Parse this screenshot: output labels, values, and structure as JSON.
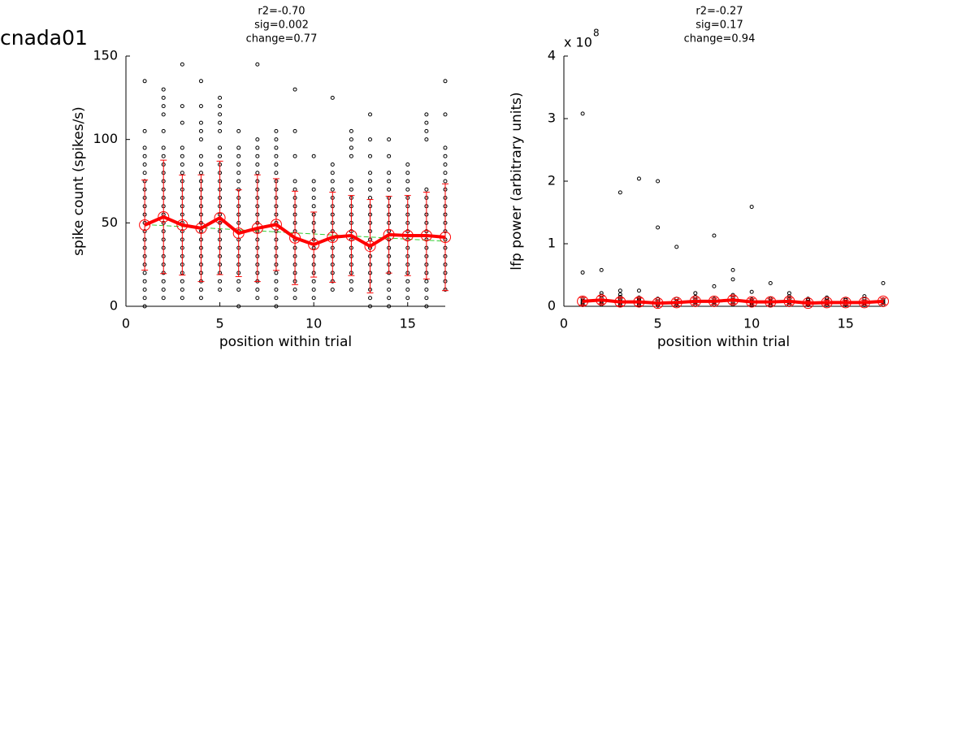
{
  "figure_title": "cnada01",
  "chart_data": [
    {
      "type": "scatter",
      "title_lines": [
        "r2=-0.70",
        "sig=0.002",
        "change=0.77"
      ],
      "xlabel": "position within trial",
      "ylabel": "spike count (spikes/s)",
      "xlim": [
        0,
        17
      ],
      "ylim": [
        0,
        150
      ],
      "xticks": [
        0,
        5,
        10,
        15
      ],
      "yticks": [
        0,
        50,
        100,
        150
      ],
      "points": {
        "color": "#000000",
        "columns": [
          {
            "x": 1,
            "values": [
              0,
              5,
              10,
              15,
              20,
              25,
              30,
              35,
              40,
              45,
              50,
              55,
              60,
              65,
              70,
              75,
              80,
              85,
              90,
              95,
              105,
              135
            ]
          },
          {
            "x": 2,
            "values": [
              5,
              10,
              15,
              20,
              25,
              30,
              35,
              40,
              45,
              50,
              55,
              60,
              65,
              70,
              75,
              80,
              85,
              90,
              95,
              105,
              115,
              120,
              125,
              130
            ]
          },
          {
            "x": 3,
            "values": [
              5,
              10,
              15,
              20,
              25,
              30,
              35,
              40,
              45,
              50,
              55,
              60,
              65,
              70,
              75,
              80,
              85,
              90,
              95,
              110,
              120,
              145
            ]
          },
          {
            "x": 4,
            "values": [
              5,
              10,
              15,
              20,
              25,
              30,
              35,
              40,
              45,
              50,
              55,
              60,
              65,
              70,
              75,
              80,
              85,
              90,
              100,
              105,
              110,
              120,
              135
            ]
          },
          {
            "x": 5,
            "values": [
              10,
              15,
              20,
              25,
              30,
              35,
              40,
              45,
              50,
              55,
              60,
              65,
              70,
              75,
              80,
              85,
              90,
              95,
              105,
              110,
              115,
              120,
              125
            ]
          },
          {
            "x": 6,
            "values": [
              0,
              10,
              15,
              20,
              25,
              30,
              35,
              40,
              45,
              50,
              55,
              60,
              65,
              70,
              75,
              80,
              85,
              90,
              95,
              105
            ]
          },
          {
            "x": 7,
            "values": [
              5,
              10,
              15,
              20,
              25,
              30,
              35,
              40,
              45,
              50,
              55,
              60,
              65,
              70,
              75,
              80,
              85,
              90,
              95,
              100,
              145
            ]
          },
          {
            "x": 8,
            "values": [
              0,
              5,
              10,
              15,
              20,
              25,
              30,
              35,
              40,
              45,
              50,
              55,
              60,
              65,
              70,
              75,
              80,
              85,
              90,
              95,
              100,
              105
            ]
          },
          {
            "x": 9,
            "values": [
              5,
              10,
              15,
              20,
              25,
              30,
              35,
              40,
              45,
              50,
              55,
              60,
              65,
              70,
              75,
              90,
              105,
              130
            ]
          },
          {
            "x": 10,
            "values": [
              5,
              10,
              15,
              20,
              25,
              30,
              35,
              40,
              45,
              50,
              55,
              60,
              65,
              70,
              75,
              90
            ]
          },
          {
            "x": 11,
            "values": [
              10,
              15,
              20,
              25,
              30,
              35,
              40,
              45,
              50,
              55,
              60,
              65,
              70,
              75,
              80,
              85,
              125
            ]
          },
          {
            "x": 12,
            "values": [
              10,
              15,
              20,
              25,
              30,
              35,
              40,
              45,
              50,
              55,
              60,
              65,
              70,
              75,
              90,
              95,
              100,
              105
            ]
          },
          {
            "x": 13,
            "values": [
              0,
              5,
              10,
              15,
              20,
              25,
              30,
              35,
              40,
              45,
              50,
              55,
              60,
              65,
              70,
              75,
              80,
              90,
              100,
              115
            ]
          },
          {
            "x": 14,
            "values": [
              0,
              5,
              10,
              15,
              20,
              25,
              30,
              35,
              40,
              45,
              50,
              55,
              60,
              65,
              70,
              75,
              80,
              90,
              100
            ]
          },
          {
            "x": 15,
            "values": [
              5,
              10,
              15,
              20,
              25,
              30,
              35,
              40,
              45,
              50,
              55,
              60,
              65,
              70,
              75,
              80,
              85
            ]
          },
          {
            "x": 16,
            "values": [
              0,
              5,
              10,
              15,
              20,
              25,
              30,
              35,
              40,
              45,
              50,
              55,
              60,
              65,
              70,
              100,
              105,
              110,
              115
            ]
          },
          {
            "x": 17,
            "values": [
              10,
              15,
              20,
              25,
              30,
              35,
              40,
              45,
              50,
              55,
              60,
              65,
              70,
              75,
              80,
              85,
              90,
              95,
              115,
              135
            ]
          }
        ]
      },
      "mean": {
        "color": "#ff0000",
        "x": [
          1,
          2,
          3,
          4,
          5,
          6,
          7,
          8,
          9,
          10,
          11,
          12,
          13,
          14,
          15,
          16,
          17
        ],
        "values": [
          48.7,
          53.6,
          48.7,
          46.8,
          53,
          43.8,
          46.8,
          49,
          41,
          37,
          41.4,
          42.4,
          36,
          42.9,
          42.4,
          42.4,
          41.4
        ],
        "errors": [
          27,
          34,
          30,
          32,
          34,
          26,
          32,
          27.5,
          28,
          19.5,
          27,
          24,
          28,
          23,
          24,
          26,
          32
        ]
      },
      "fit": {
        "color": "#33cc33",
        "x": [
          1,
          17
        ],
        "values": [
          49,
          39
        ]
      }
    },
    {
      "type": "scatter",
      "title_lines": [
        "r2=-0.27",
        "sig=0.17",
        "change=0.94"
      ],
      "xlabel": "position within trial",
      "ylabel": "lfp power (arbitrary units)",
      "y_exponent_label": "x 10",
      "y_exponent": 8,
      "xlim": [
        0,
        17
      ],
      "ylim": [
        0,
        4
      ],
      "xticks": [
        0,
        5,
        10,
        15
      ],
      "yticks": [
        0,
        1,
        2,
        3,
        4
      ],
      "points": {
        "color": "#000000",
        "columns": [
          {
            "x": 1,
            "values": [
              0.02,
              0.04,
              0.06,
              0.09,
              0.12,
              0.54,
              3.08
            ]
          },
          {
            "x": 2,
            "values": [
              0.03,
              0.06,
              0.09,
              0.13,
              0.17,
              0.21,
              0.58
            ]
          },
          {
            "x": 3,
            "values": [
              0.02,
              0.05,
              0.08,
              0.11,
              0.15,
              0.19,
              0.25,
              1.82
            ]
          },
          {
            "x": 4,
            "values": [
              0.02,
              0.05,
              0.08,
              0.11,
              0.14,
              0.25,
              2.04
            ]
          },
          {
            "x": 5,
            "values": [
              0.01,
              0.03,
              0.05,
              0.08,
              0.12,
              1.26,
              2.0
            ]
          },
          {
            "x": 6,
            "values": [
              0.02,
              0.05,
              0.08,
              0.12,
              0.95
            ]
          },
          {
            "x": 7,
            "values": [
              0.02,
              0.05,
              0.08,
              0.11,
              0.15,
              0.21
            ]
          },
          {
            "x": 8,
            "values": [
              0.02,
              0.05,
              0.08,
              0.12,
              0.32,
              1.13
            ]
          },
          {
            "x": 9,
            "values": [
              0.03,
              0.06,
              0.1,
              0.14,
              0.18,
              0.43,
              0.58
            ]
          },
          {
            "x": 10,
            "values": [
              0.02,
              0.05,
              0.08,
              0.11,
              0.23,
              1.59
            ]
          },
          {
            "x": 11,
            "values": [
              0.02,
              0.05,
              0.08,
              0.12,
              0.37
            ]
          },
          {
            "x": 12,
            "values": [
              0.02,
              0.05,
              0.08,
              0.12,
              0.16,
              0.21
            ]
          },
          {
            "x": 13,
            "values": [
              0.02,
              0.04,
              0.07,
              0.1,
              0.12
            ]
          },
          {
            "x": 14,
            "values": [
              0.02,
              0.05,
              0.08,
              0.12,
              0.14
            ]
          },
          {
            "x": 15,
            "values": [
              0.02,
              0.04,
              0.07,
              0.1,
              0.12
            ]
          },
          {
            "x": 16,
            "values": [
              0.02,
              0.05,
              0.08,
              0.12,
              0.16
            ]
          },
          {
            "x": 17,
            "values": [
              0.02,
              0.05,
              0.08,
              0.11,
              0.37
            ]
          }
        ]
      },
      "mean": {
        "color": "#ff0000",
        "x": [
          1,
          2,
          3,
          4,
          5,
          6,
          7,
          8,
          9,
          10,
          11,
          12,
          13,
          14,
          15,
          16,
          17
        ],
        "values": [
          0.08,
          0.1,
          0.07,
          0.07,
          0.05,
          0.06,
          0.08,
          0.08,
          0.1,
          0.07,
          0.07,
          0.08,
          0.05,
          0.06,
          0.06,
          0.06,
          0.08
        ],
        "errors": [
          0.06,
          0.06,
          0.06,
          0.06,
          0.05,
          0.05,
          0.05,
          0.05,
          0.06,
          0.05,
          0.05,
          0.05,
          0.04,
          0.04,
          0.04,
          0.04,
          0.05
        ]
      }
    }
  ]
}
